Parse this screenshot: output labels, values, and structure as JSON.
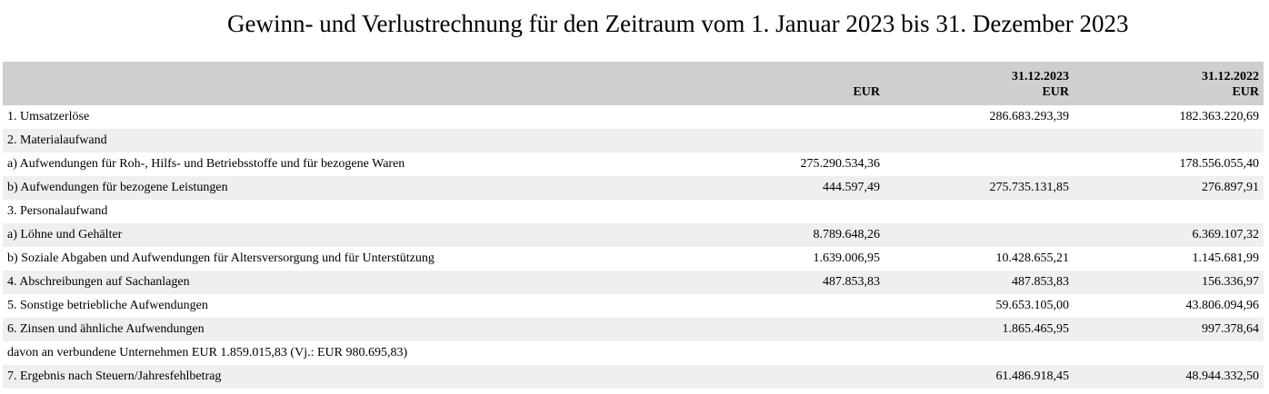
{
  "title": "Gewinn- und Verlustrechnung für den Zeitraum vom 1. Januar 2023 bis 31. Dezember 2023",
  "header": {
    "col_eur": {
      "date": "",
      "unit": "EUR"
    },
    "col_cur": {
      "date": "31.12.2023",
      "unit": "EUR"
    },
    "col_prev": {
      "date": "31.12.2022",
      "unit": "EUR"
    }
  },
  "rows": [
    {
      "label": "1. Umsatzerlöse",
      "eur": "",
      "cur": "286.683.293,39",
      "prev": "182.363.220,69"
    },
    {
      "label": "2. Materialaufwand",
      "eur": "",
      "cur": "",
      "prev": ""
    },
    {
      "label": "a) Aufwendungen für Roh-, Hilfs- und Betriebsstoffe und für bezogene Waren",
      "eur": "275.290.534,36",
      "cur": "",
      "prev": "178.556.055,40"
    },
    {
      "label": "b) Aufwendungen für bezogene Leistungen",
      "eur": "444.597,49",
      "cur": "275.735.131,85",
      "prev": "276.897,91"
    },
    {
      "label": "3. Personalaufwand",
      "eur": "",
      "cur": "",
      "prev": ""
    },
    {
      "label": "a) Löhne und Gehälter",
      "eur": "8.789.648,26",
      "cur": "",
      "prev": "6.369.107,32"
    },
    {
      "label": "b) Soziale Abgaben und Aufwendungen für Altersversorgung und für Unterstützung",
      "eur": "1.639.006,95",
      "cur": "10.428.655,21",
      "prev": "1.145.681,99"
    },
    {
      "label": "4. Abschreibungen auf Sachanlagen",
      "eur": "487.853,83",
      "cur": "487.853,83",
      "prev": "156.336,97"
    },
    {
      "label": "5. Sonstige betriebliche Aufwendungen",
      "eur": "",
      "cur": "59.653.105,00",
      "prev": "43.806.094,96"
    },
    {
      "label": "6. Zinsen und ähnliche Aufwendungen",
      "eur": "",
      "cur": "1.865.465,95",
      "prev": "997.378,64"
    },
    {
      "label": "davon an verbundene Unternehmen EUR 1.859.015,83 (Vj.: EUR 980.695,83)",
      "eur": "",
      "cur": "",
      "prev": ""
    },
    {
      "label": "7. Ergebnis nach Steuern/Jahresfehlbetrag",
      "eur": "",
      "cur": "61.486.918,45",
      "prev": "48.944.332,50"
    }
  ]
}
